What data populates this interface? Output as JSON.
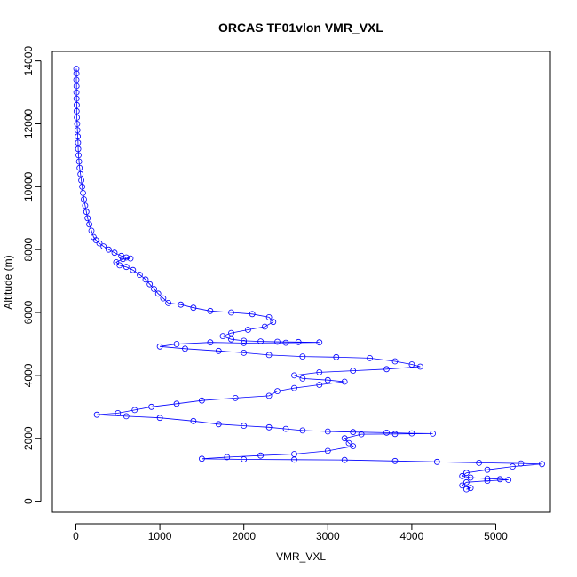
{
  "chart_data": {
    "type": "scatter",
    "title": "ORCAS TF01vlon VMR_VXL",
    "xlabel": "VMR_VXL",
    "ylabel": "Altitude (m)",
    "xlim": [
      -280,
      5650
    ],
    "ylim": [
      -350,
      14300
    ],
    "xticks": [
      0,
      1000,
      2000,
      3000,
      4000,
      5000
    ],
    "yticks": [
      0,
      2000,
      4000,
      6000,
      8000,
      10000,
      12000,
      14000
    ],
    "grid": false,
    "connected": true,
    "marker": "open-circle",
    "color": "#0000ff",
    "series": [
      {
        "name": "VMR_VXL",
        "points": [
          [
            5,
            13750
          ],
          [
            6,
            13600
          ],
          [
            5,
            13400
          ],
          [
            7,
            13200
          ],
          [
            6,
            13000
          ],
          [
            8,
            12800
          ],
          [
            10,
            12600
          ],
          [
            9,
            12400
          ],
          [
            12,
            12200
          ],
          [
            15,
            12000
          ],
          [
            18,
            11800
          ],
          [
            22,
            11600
          ],
          [
            25,
            11400
          ],
          [
            28,
            11200
          ],
          [
            32,
            11000
          ],
          [
            38,
            10800
          ],
          [
            45,
            10600
          ],
          [
            55,
            10400
          ],
          [
            65,
            10200
          ],
          [
            75,
            10000
          ],
          [
            85,
            9800
          ],
          [
            95,
            9600
          ],
          [
            110,
            9400
          ],
          [
            125,
            9200
          ],
          [
            140,
            9000
          ],
          [
            160,
            8800
          ],
          [
            185,
            8600
          ],
          [
            210,
            8400
          ],
          [
            240,
            8300
          ],
          [
            280,
            8200
          ],
          [
            330,
            8100
          ],
          [
            390,
            8000
          ],
          [
            460,
            7900
          ],
          [
            540,
            7800
          ],
          [
            600,
            7750
          ],
          [
            650,
            7720
          ],
          [
            560,
            7700
          ],
          [
            480,
            7600
          ],
          [
            520,
            7500
          ],
          [
            600,
            7450
          ],
          [
            680,
            7350
          ],
          [
            760,
            7200
          ],
          [
            830,
            7050
          ],
          [
            880,
            6900
          ],
          [
            930,
            6750
          ],
          [
            980,
            6600
          ],
          [
            1040,
            6450
          ],
          [
            1100,
            6300
          ],
          [
            1250,
            6250
          ],
          [
            1400,
            6150
          ],
          [
            1600,
            6050
          ],
          [
            1850,
            6000
          ],
          [
            2100,
            5950
          ],
          [
            2300,
            5850
          ],
          [
            2350,
            5700
          ],
          [
            2250,
            5550
          ],
          [
            2050,
            5450
          ],
          [
            1850,
            5350
          ],
          [
            1750,
            5250
          ],
          [
            1850,
            5150
          ],
          [
            2000,
            5100
          ],
          [
            2200,
            5080
          ],
          [
            2400,
            5070
          ],
          [
            2650,
            5060
          ],
          [
            2900,
            5050
          ],
          [
            2500,
            5040
          ],
          [
            2000,
            5030
          ],
          [
            1600,
            5050
          ],
          [
            1200,
            5000
          ],
          [
            1000,
            4920
          ],
          [
            1300,
            4850
          ],
          [
            1700,
            4780
          ],
          [
            2000,
            4720
          ],
          [
            2300,
            4650
          ],
          [
            2700,
            4600
          ],
          [
            3100,
            4580
          ],
          [
            3500,
            4550
          ],
          [
            3800,
            4450
          ],
          [
            4000,
            4350
          ],
          [
            4100,
            4280
          ],
          [
            3700,
            4200
          ],
          [
            3300,
            4150
          ],
          [
            2900,
            4100
          ],
          [
            2600,
            4000
          ],
          [
            2700,
            3900
          ],
          [
            3000,
            3850
          ],
          [
            3200,
            3800
          ],
          [
            2900,
            3700
          ],
          [
            2600,
            3600
          ],
          [
            2400,
            3500
          ],
          [
            2300,
            3350
          ],
          [
            1900,
            3280
          ],
          [
            1500,
            3200
          ],
          [
            1200,
            3100
          ],
          [
            900,
            3000
          ],
          [
            700,
            2900
          ],
          [
            500,
            2800
          ],
          [
            250,
            2750
          ],
          [
            600,
            2700
          ],
          [
            1000,
            2650
          ],
          [
            1400,
            2550
          ],
          [
            1700,
            2450
          ],
          [
            2000,
            2400
          ],
          [
            2300,
            2350
          ],
          [
            2500,
            2300
          ],
          [
            2700,
            2250
          ],
          [
            3000,
            2220
          ],
          [
            3300,
            2200
          ],
          [
            3700,
            2180
          ],
          [
            4000,
            2160
          ],
          [
            4250,
            2150
          ],
          [
            3800,
            2140
          ],
          [
            3400,
            2130
          ],
          [
            3200,
            2000
          ],
          [
            3250,
            1850
          ],
          [
            3300,
            1750
          ],
          [
            3000,
            1600
          ],
          [
            2600,
            1500
          ],
          [
            2200,
            1450
          ],
          [
            1800,
            1400
          ],
          [
            1500,
            1350
          ],
          [
            2000,
            1330
          ],
          [
            2600,
            1320
          ],
          [
            3200,
            1310
          ],
          [
            3800,
            1280
          ],
          [
            4300,
            1250
          ],
          [
            4800,
            1220
          ],
          [
            5300,
            1200
          ],
          [
            5550,
            1180
          ],
          [
            5200,
            1100
          ],
          [
            4900,
            1000
          ],
          [
            4650,
            900
          ],
          [
            4600,
            800
          ],
          [
            4700,
            750
          ],
          [
            4900,
            720
          ],
          [
            5050,
            700
          ],
          [
            5150,
            680
          ],
          [
            4900,
            650
          ],
          [
            4650,
            600
          ],
          [
            4600,
            500
          ],
          [
            4700,
            420
          ],
          [
            4650,
            380
          ]
        ]
      }
    ]
  }
}
